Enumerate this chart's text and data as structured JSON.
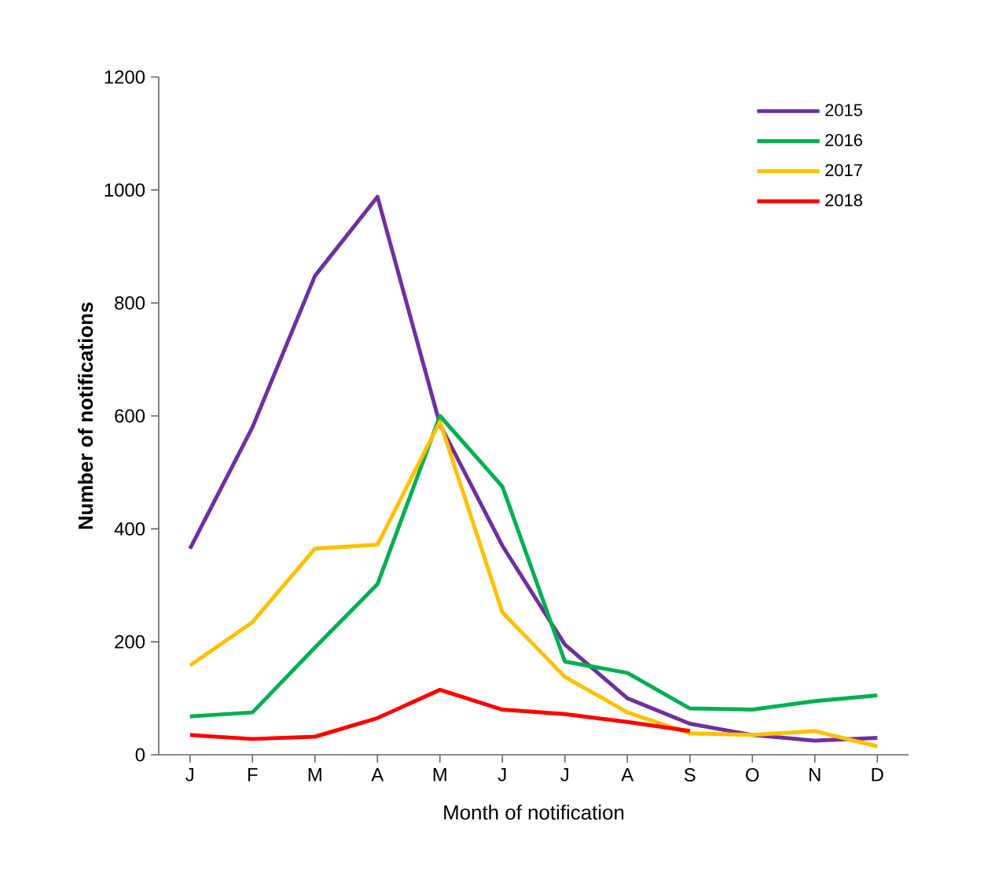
{
  "chart_data": {
    "type": "line",
    "xlabel": "Month of notification",
    "ylabel": "Number of notifications",
    "categories": [
      "J",
      "F",
      "M",
      "A",
      "M",
      "J",
      "J",
      "A",
      "S",
      "O",
      "N",
      "D"
    ],
    "ylim": [
      0,
      1200
    ],
    "yticks": [
      0,
      200,
      400,
      600,
      800,
      1000,
      1200
    ],
    "legend": "top right",
    "grid": false,
    "series": [
      {
        "name": "2015",
        "color": "#7030a0",
        "values": [
          365,
          580,
          848,
          988,
          585,
          370,
          195,
          100,
          55,
          35,
          25,
          30
        ]
      },
      {
        "name": "2016",
        "color": "#00b050",
        "values": [
          68,
          75,
          190,
          302,
          600,
          475,
          165,
          145,
          82,
          80,
          95,
          105
        ]
      },
      {
        "name": "2017",
        "color": "#ffc000",
        "values": [
          158,
          235,
          365,
          372,
          590,
          252,
          138,
          75,
          38,
          35,
          42,
          15
        ]
      },
      {
        "name": "2018",
        "color": "#ff0000",
        "values": [
          35,
          28,
          32,
          65,
          115,
          80,
          72,
          58,
          42,
          null,
          null,
          null
        ]
      }
    ]
  }
}
